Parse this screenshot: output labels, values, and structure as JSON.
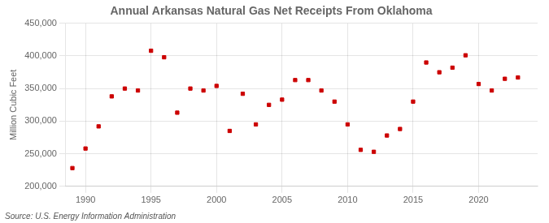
{
  "chart_data": {
    "type": "scatter",
    "title": "Annual Arkansas Natural Gas Net Receipts From Oklahoma",
    "ylabel": "Million Cubic Feet",
    "annotations": [
      "Source: U.S. Energy Information Administration"
    ],
    "x": [
      1989,
      1990,
      1991,
      1992,
      1993,
      1994,
      1995,
      1996,
      1997,
      1998,
      1999,
      2000,
      2001,
      2002,
      2003,
      2004,
      2005,
      2006,
      2007,
      2008,
      2009,
      2010,
      2011,
      2012,
      2013,
      2014,
      2015,
      2016,
      2017,
      2018,
      2019,
      2020,
      2021,
      2022,
      2023
    ],
    "values": [
      228000,
      258000,
      292000,
      338000,
      350000,
      347000,
      408000,
      398000,
      313000,
      350000,
      347000,
      354000,
      285000,
      342000,
      295000,
      325000,
      333000,
      363000,
      363000,
      347000,
      330000,
      295000,
      256000,
      253000,
      278000,
      288000,
      330000,
      390000,
      375000,
      382000,
      401000,
      357000,
      347000,
      365000,
      367000
    ],
    "color": "#cc0000",
    "marker": "square",
    "xlim": [
      1988.5,
      2024.5
    ],
    "xticks": [
      1990,
      1995,
      2000,
      2005,
      2010,
      2015,
      2020
    ],
    "ylim": [
      200000,
      450000
    ],
    "yticks": [
      {
        "value": 200000,
        "label": "200,000"
      },
      {
        "value": 250000,
        "label": "250,000"
      },
      {
        "value": 300000,
        "label": "300,000"
      },
      {
        "value": 350000,
        "label": "350,000"
      },
      {
        "value": 400000,
        "label": "400,000"
      },
      {
        "value": 450000,
        "label": "450,000"
      }
    ],
    "grid": true
  }
}
